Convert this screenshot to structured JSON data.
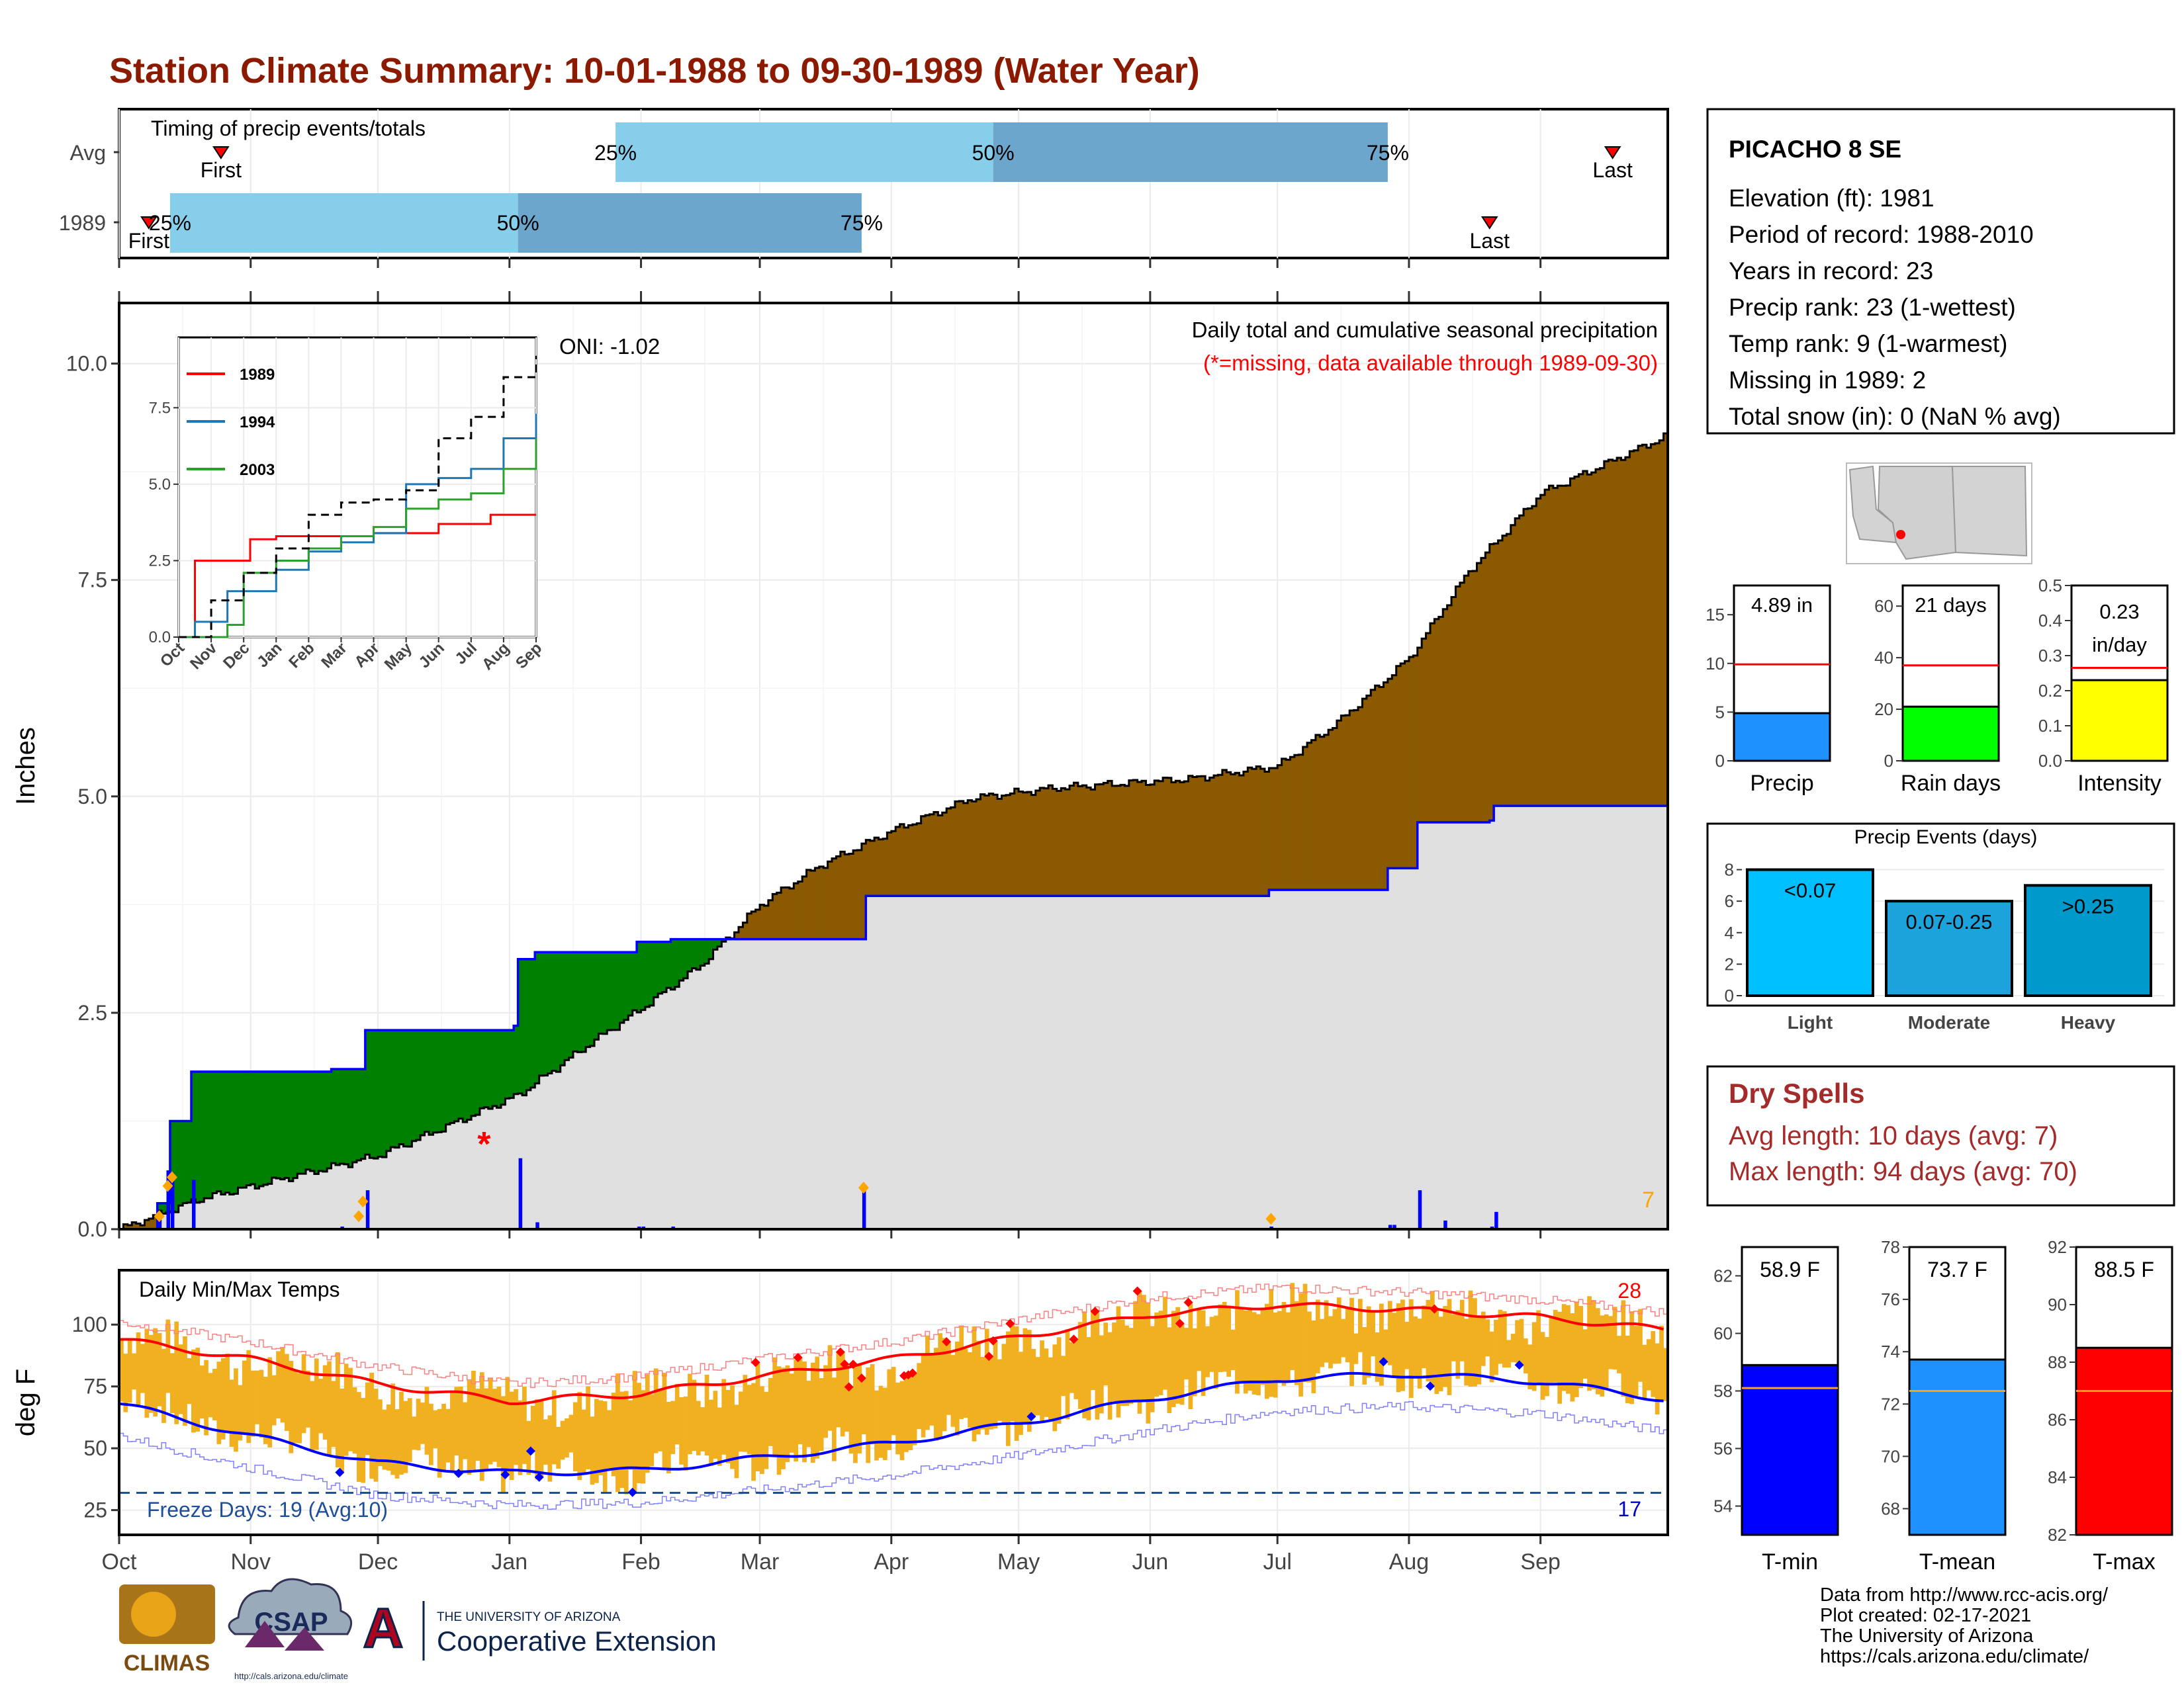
{
  "title": "Station Climate Summary: 10-01-1988 to 09-30-1989 (Water Year)",
  "colors": {
    "title": "#8B1A00",
    "precip_brown": "#8B5A00",
    "deficit_green": "#008000",
    "avg_gray": "#E0E0E0",
    "blue": "#0000FF",
    "orange": "#FFA500",
    "temp_fill": "#F0B020",
    "red": "#FF0000",
    "dryspell": "#A52A2A"
  },
  "timing": {
    "title": "Timing of precip events/totals",
    "rows": [
      "Avg",
      "1989"
    ],
    "avg": {
      "first": "Oct 25",
      "p25": "Jan 26",
      "p50": "Apr 25",
      "p75": "Jul 27",
      "last": "Sep 18"
    },
    "yr": {
      "first": "Oct 8",
      "p25": "Oct 13",
      "p50": "Jan 3",
      "p75": "Mar 25",
      "last": "Aug 20"
    },
    "labels": {
      "first": "First",
      "last": "Last",
      "p25": "25%",
      "p50": "50%",
      "p75": "75%"
    }
  },
  "precip_panel": {
    "ylabel": "Inches",
    "yticks": [
      "0.0",
      "2.5",
      "5.0",
      "7.5",
      "10.0"
    ],
    "note1": "Daily total and cumulative seasonal precipitation",
    "note2": "(*=missing, data available through 1989-09-30)",
    "oni": "ONI: -1.02",
    "corner_count": "7",
    "missing_marker": "*"
  },
  "inset": {
    "yticks": [
      "0.0",
      "2.5",
      "5.0",
      "7.5"
    ],
    "xticks": [
      "Oct",
      "Nov",
      "Dec",
      "Jan",
      "Feb",
      "Mar",
      "Apr",
      "May",
      "Jun",
      "Jul",
      "Aug",
      "Sep"
    ],
    "legend": [
      {
        "name": "1989",
        "color": "#FF0000"
      },
      {
        "name": "1994",
        "color": "#1F77B4"
      },
      {
        "name": "2003",
        "color": "#2CA02C"
      }
    ]
  },
  "temp_panel": {
    "ylabel": "deg F",
    "title": "Daily Min/Max Temps",
    "yticks": [
      "25",
      "50",
      "75",
      "100"
    ],
    "freeze_text": "Freeze Days: 19 (Avg:10)",
    "hot_count": "28",
    "cold_count": "17"
  },
  "months": [
    "Oct",
    "Nov",
    "Dec",
    "Jan",
    "Feb",
    "Mar",
    "Apr",
    "May",
    "Jun",
    "Jul",
    "Aug",
    "Sep"
  ],
  "station": {
    "name": "PICACHO 8 SE",
    "lines": [
      "Elevation (ft): 1981",
      "Period of record: 1988-2010",
      "Years in record: 23",
      "Precip rank: 23 (1-wettest)",
      "Temp rank: 9 (1-warmest)",
      "Missing in 1989: 2",
      "Total snow (in): 0 (NaN % avg)"
    ]
  },
  "bars_top": [
    {
      "label": "Precip",
      "value_label": "4.89 in",
      "value": 4.89,
      "avg": 9.9,
      "ymax": 18,
      "yticks": [
        "0",
        "5",
        "10",
        "15"
      ],
      "tickvals": [
        0,
        5,
        10,
        15
      ],
      "color": "#1E90FF"
    },
    {
      "label": "Rain days",
      "value_label": "21 days",
      "value": 21,
      "avg": 37,
      "ymax": 68,
      "yticks": [
        "0",
        "20",
        "40",
        "60"
      ],
      "tickvals": [
        0,
        20,
        40,
        60
      ],
      "color": "#00FF00"
    },
    {
      "label": "Intensity",
      "value_label1": "0.23",
      "value_label2": "in/day",
      "value": 0.23,
      "avg": 0.265,
      "ymax": 0.5,
      "yticks": [
        "0.0",
        "0.1",
        "0.2",
        "0.3",
        "0.4",
        "0.5"
      ],
      "tickvals": [
        0,
        0.1,
        0.2,
        0.3,
        0.4,
        0.5
      ],
      "color": "#FFFF00"
    }
  ],
  "events": {
    "title": "Precip Events (days)",
    "yticks": [
      "0",
      "2",
      "4",
      "6",
      "8"
    ],
    "bars": [
      {
        "label": "Light",
        "range": "<0.07",
        "value": 8,
        "color": "#00BFFF"
      },
      {
        "label": "Moderate",
        "range": "0.07-0.25",
        "value": 6,
        "color": "#1CA3DC"
      },
      {
        "label": "Heavy",
        "range": ">0.25",
        "value": 7,
        "color": "#0099CC"
      }
    ]
  },
  "dry_spells": {
    "title": "Dry Spells",
    "avg": "Avg length: 10 days (avg: 7)",
    "max": "Max length: 94 days (avg: 70)"
  },
  "bars_temp": [
    {
      "label": "T-min",
      "value_label": "58.9 F",
      "value": 58.9,
      "avg": 58.1,
      "ymin": 53,
      "ymax": 63,
      "yticks": [
        "54",
        "56",
        "58",
        "60",
        "62"
      ],
      "tickvals": [
        54,
        56,
        58,
        60,
        62
      ],
      "color": "#0000FF"
    },
    {
      "label": "T-mean",
      "value_label": "73.7 F",
      "value": 73.7,
      "avg": 72.5,
      "ymin": 67,
      "ymax": 78,
      "yticks": [
        "68",
        "70",
        "72",
        "74",
        "76",
        "78"
      ],
      "tickvals": [
        68,
        70,
        72,
        74,
        76,
        78
      ],
      "color": "#1E90FF"
    },
    {
      "label": "T-max",
      "value_label": "88.5 F",
      "value": 88.5,
      "avg": 87,
      "ymin": 82,
      "ymax": 92,
      "yticks": [
        "82",
        "84",
        "86",
        "88",
        "90",
        "92"
      ],
      "tickvals": [
        82,
        84,
        86,
        88,
        90,
        92
      ],
      "color": "#FF0000"
    }
  ],
  "footer": [
    "Data from http://www.rcc-acis.org/",
    "Plot created: 02-17-2021",
    "The University of Arizona",
    "https://cals.arizona.edu/climate/"
  ],
  "logos": {
    "climas": "CLIMAS",
    "csap": "CSAP",
    "csap_url": "http://cals.arizona.edu/climate",
    "ua_small": "THE UNIVERSITY OF ARIZONA",
    "ua_big": "Cooperative Extension",
    "ua_letter": "A"
  },
  "chart_data": [
    {
      "type": "area",
      "title": "Daily total and cumulative seasonal precipitation",
      "ylabel": "Inches",
      "ylim": [
        0,
        10
      ],
      "series": [
        {
          "name": "1989",
          "points": [
            [
              "Oct 1",
              0
            ],
            [
              "Oct 10",
              0.3
            ],
            [
              "Oct 13",
              1.25
            ],
            [
              "Oct 18",
              1.82
            ],
            [
              "Nov 20",
              1.85
            ],
            [
              "Nov 28",
              2.3
            ],
            [
              "Dec 29",
              2.3
            ],
            [
              "Jan 2",
              2.35
            ],
            [
              "Jan 3",
              3.12
            ],
            [
              "Jan 7",
              3.2
            ],
            [
              "Jan 31",
              3.32
            ],
            [
              "Feb 8",
              3.35
            ],
            [
              "Mar 25",
              3.35
            ],
            [
              "Mar 26",
              3.85
            ],
            [
              "Jun 28",
              3.85
            ],
            [
              "Jun 29",
              3.92
            ],
            [
              "Jul 26",
              3.92
            ],
            [
              "Jul 27",
              4.17
            ],
            [
              "Aug 2",
              4.17
            ],
            [
              "Aug 3",
              4.7
            ],
            [
              "Aug 20",
              4.72
            ],
            [
              "Aug 21",
              4.89
            ],
            [
              "Sep 30",
              4.89
            ]
          ]
        },
        {
          "name": "Average",
          "points": [
            [
              "Oct 1",
              0
            ],
            [
              "Oct 20",
              0.35
            ],
            [
              "Nov 10",
              0.6
            ],
            [
              "Dec 1",
              0.85
            ],
            [
              "Dec 20",
              1.25
            ],
            [
              "Jan 3",
              1.55
            ],
            [
              "Jan 20",
              2.15
            ],
            [
              "Feb 1",
              2.55
            ],
            [
              "Feb 15",
              3.05
            ],
            [
              "Mar 1",
              3.75
            ],
            [
              "Mar 15",
              4.2
            ],
            [
              "Apr 1",
              4.6
            ],
            [
              "Apr 20",
              4.98
            ],
            [
              "May 10",
              5.1
            ],
            [
              "Jun 10",
              5.2
            ],
            [
              "Jul 1",
              5.35
            ],
            [
              "Jul 15",
              5.85
            ],
            [
              "Aug 1",
              6.6
            ],
            [
              "Aug 15",
              7.6
            ],
            [
              "Sep 1",
              8.5
            ],
            [
              "Sep 30",
              9.15
            ]
          ]
        }
      ],
      "daily_bars": [
        [
          "Oct 10",
          0.17
        ],
        [
          "Oct 12",
          0.68
        ],
        [
          "Oct 13",
          0.65
        ],
        [
          "Oct 18",
          0.57
        ],
        [
          "Nov 22",
          0.03
        ],
        [
          "Nov 28",
          0.45
        ],
        [
          "Jan 3",
          0.82
        ],
        [
          "Jan 7",
          0.08
        ],
        [
          "Jan 31",
          0.03
        ],
        [
          "Feb 1",
          0.03
        ],
        [
          "Feb 8",
          0.03
        ],
        [
          "Mar 25",
          0.5
        ],
        [
          "Jun 29",
          0.03
        ],
        [
          "Jul 27",
          0.05
        ],
        [
          "Jul 28",
          0.05
        ],
        [
          "Aug 3",
          0.45
        ],
        [
          "Aug 9",
          0.1
        ],
        [
          "Aug 20",
          0.03
        ],
        [
          "Aug 21",
          0.2
        ]
      ],
      "missing": [
        [
          "Dec 26",
          1.0
        ]
      ],
      "markers": [
        [
          "Oct 10",
          0.15
        ],
        [
          "Oct 12",
          0.5
        ],
        [
          "Oct 13",
          0.6
        ],
        [
          "Nov 26",
          0.15
        ],
        [
          "Nov 27",
          0.32
        ],
        [
          "Mar 25",
          0.48
        ],
        [
          "Jun 29",
          0.12
        ]
      ]
    },
    {
      "type": "line",
      "title": "",
      "ylim": [
        0,
        10
      ],
      "series": [
        {
          "name": "1989",
          "points": [
            [
              0,
              0
            ],
            [
              0.5,
              2.5
            ],
            [
              2,
              2.5
            ],
            [
              2.2,
              3.2
            ],
            [
              3,
              3.3
            ],
            [
              6,
              3.4
            ],
            [
              8,
              3.7
            ],
            [
              9.6,
              4.0
            ],
            [
              11,
              4.0
            ]
          ]
        },
        {
          "name": "1994",
          "points": [
            [
              0,
              0
            ],
            [
              0.5,
              0.5
            ],
            [
              1.5,
              1.5
            ],
            [
              3,
              2.2
            ],
            [
              4,
              2.8
            ],
            [
              5,
              3.1
            ],
            [
              6,
              3.4
            ],
            [
              7,
              5.0
            ],
            [
              8,
              5.2
            ],
            [
              9,
              5.5
            ],
            [
              10,
              6.5
            ],
            [
              11,
              7.3
            ]
          ]
        },
        {
          "name": "2003",
          "points": [
            [
              0,
              0
            ],
            [
              1.5,
              0.4
            ],
            [
              2,
              2.1
            ],
            [
              3,
              2.5
            ],
            [
              4,
              2.9
            ],
            [
              5,
              3.3
            ],
            [
              6,
              3.6
            ],
            [
              7,
              4.2
            ],
            [
              8,
              4.5
            ],
            [
              9,
              4.7
            ],
            [
              10,
              5.5
            ],
            [
              11,
              6.5
            ]
          ]
        },
        {
          "name": "Average",
          "points": [
            [
              0,
              0
            ],
            [
              1,
              1.2
            ],
            [
              2,
              2.1
            ],
            [
              3,
              2.9
            ],
            [
              4,
              4.0
            ],
            [
              5,
              4.4
            ],
            [
              6,
              4.5
            ],
            [
              7,
              4.8
            ],
            [
              8,
              6.5
            ],
            [
              9,
              7.2
            ],
            [
              10,
              8.5
            ],
            [
              11,
              9.2
            ]
          ]
        }
      ]
    },
    {
      "type": "line",
      "title": "Daily Min/Max Temps",
      "ylabel": "deg F",
      "ylim": [
        15,
        120
      ],
      "series": [
        {
          "name": "Avg max",
          "points": [
            [
              "Oct 1",
              94
            ],
            [
              "Nov 1",
              86
            ],
            [
              "Dec 1",
              76
            ],
            [
              "Jan 1",
              69
            ],
            [
              "Feb 1",
              72
            ],
            [
              "Mar 1",
              79
            ],
            [
              "Apr 1",
              86
            ],
            [
              "May 1",
              95
            ],
            [
              "Jun 1",
              104
            ],
            [
              "Jul 1",
              108
            ],
            [
              "Aug 1",
              106
            ],
            [
              "Sep 1",
              103
            ],
            [
              "Sep 30",
              98
            ]
          ]
        },
        {
          "name": "Avg min",
          "points": [
            [
              "Oct 1",
              68
            ],
            [
              "Nov 1",
              55
            ],
            [
              "Dec 1",
              44
            ],
            [
              "Jan 1",
              40
            ],
            [
              "Feb 1",
              41
            ],
            [
              "Mar 1",
              46
            ],
            [
              "Apr 1",
              52
            ],
            [
              "May 1",
              60
            ],
            [
              "Jun 1",
              70
            ],
            [
              "Jul 1",
              78
            ],
            [
              "Aug 1",
              80
            ],
            [
              "Sep 1",
              77
            ],
            [
              "Sep 30",
              70
            ]
          ]
        }
      ],
      "freeze_line": 32
    },
    {
      "type": "bar",
      "title": "",
      "categories": [
        "Precip",
        "Rain days",
        "Intensity"
      ],
      "values": [
        4.89,
        21,
        0.23
      ]
    },
    {
      "type": "bar",
      "title": "Precip Events (days)",
      "categories": [
        "Light",
        "Moderate",
        "Heavy"
      ],
      "values": [
        8,
        6,
        7
      ]
    },
    {
      "type": "bar",
      "title": "",
      "categories": [
        "T-min",
        "T-mean",
        "T-max"
      ],
      "values": [
        58.9,
        73.7,
        88.5
      ]
    }
  ]
}
